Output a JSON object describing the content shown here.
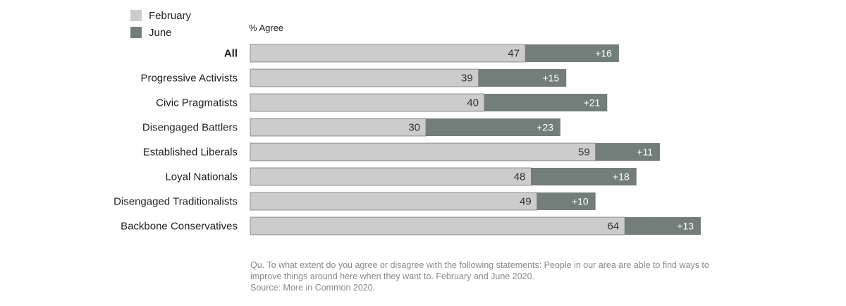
{
  "chart_data": {
    "type": "bar",
    "orientation": "horizontal",
    "stacked": true,
    "ylabel": "% Agree",
    "categories": [
      "All",
      "Progressive Activists",
      "Civic Pragmatists",
      "Disengaged Battlers",
      "Established Liberals",
      "Loyal Nationals",
      "Disengaged Traditionalists",
      "Backbone Conservatives"
    ],
    "series": [
      {
        "name": "February",
        "color": "#cccccc",
        "values": [
          47,
          39,
          40,
          30,
          59,
          48,
          49,
          64
        ],
        "labels": [
          "47",
          "39",
          "40",
          "30",
          "59",
          "48",
          "49",
          "64"
        ]
      },
      {
        "name": "June",
        "color": "#737e7a",
        "values": [
          16,
          15,
          21,
          23,
          11,
          18,
          10,
          13
        ],
        "labels": [
          "+16",
          "+15",
          "+21",
          "+23",
          "+11",
          "+18",
          "+10",
          "+13"
        ]
      }
    ],
    "xlim": [
      0,
      100
    ],
    "grid": false,
    "legend": "top-left",
    "highlight_category": "All"
  },
  "footnote": {
    "lines": [
      "Qu. To what extent do you agree or disagree with the following statements: People in our area are able to find ways to",
      "improve things around here when they want to. February and June 2020.",
      "Source: More in Common 2020."
    ]
  }
}
